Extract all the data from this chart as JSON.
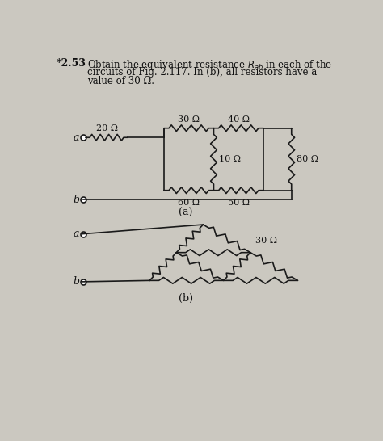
{
  "bg_color": "#cbc8c0",
  "line_color": "#1a1a1a",
  "fig_width": 4.74,
  "fig_height": 5.46,
  "dpi": 100,
  "title_star253": "*2.53",
  "title_line1": "Obtain the equivalent resistance $R_{ab}$ in each of the",
  "title_line2": "circuits of Fig. 2.117. In (b), all resistors have a",
  "title_line3": "value of 30 Ω.",
  "label_a_circuit": "(a)",
  "label_b_circuit": "(b)",
  "r20": "20 Ω",
  "r30_top": "30 Ω",
  "r40": "40 Ω",
  "r10": "10 Ω",
  "r60": "60 Ω",
  "r50": "50 Ω",
  "r80": "80 Ω",
  "r30_b": "30 Ω"
}
